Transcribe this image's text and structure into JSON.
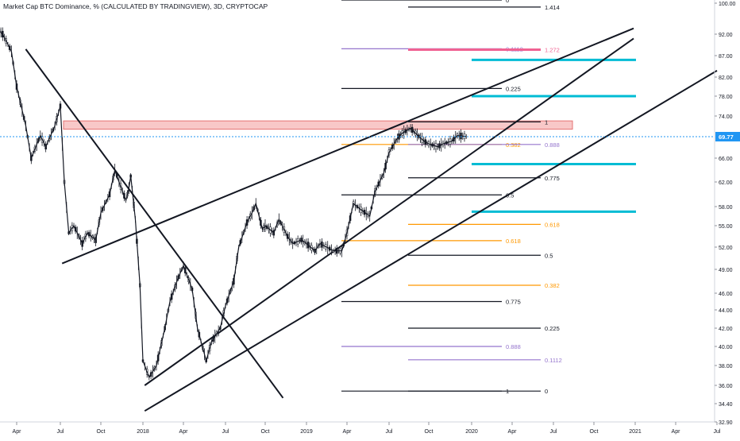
{
  "chart_data": {
    "type": "line",
    "title": "Market Cap BTC Dominance, % (CALCULATED BY TRADINGVIEW), 3D, CRYPTOCAP",
    "price_scale": {
      "ticks": [
        "100.00",
        "92.00",
        "87.00",
        "82.00",
        "78.00",
        "74.00",
        "69.77",
        "66.00",
        "62.00",
        "58.00",
        "55.00",
        "52.00",
        "49.00",
        "46.00",
        "44.00",
        "42.00",
        "40.00",
        "38.00",
        "36.00",
        "34.40",
        "32.90"
      ],
      "current_price": "69.77"
    },
    "time_axis": {
      "labels": [
        "Apr",
        "Jul",
        "Oct",
        "2018",
        "Apr",
        "Jul",
        "Oct",
        "2019",
        "Apr",
        "Jul",
        "Oct",
        "2020",
        "Apr",
        "Jul",
        "Oct",
        "2021",
        "Apr",
        "Jul"
      ]
    },
    "fib_levels": [
      {
        "label": "0",
        "value": 100.8,
        "color": "#131722",
        "group": "left"
      },
      {
        "label": "1.414",
        "value": 99.0,
        "color": "#131722",
        "group": "right"
      },
      {
        "label": "0.1112",
        "value": 88.6,
        "color": "#9575cd",
        "group": "left"
      },
      {
        "label": "1.272",
        "value": 88.4,
        "color": "#f06292",
        "group": "right"
      },
      {
        "label": "0.225",
        "value": 79.6,
        "color": "#131722",
        "group": "left"
      },
      {
        "label": "1",
        "value": 72.8,
        "color": "#131722",
        "group": "right"
      },
      {
        "label": "0.382",
        "value": 68.4,
        "color": "#ff9800",
        "group": "left"
      },
      {
        "label": "0.888",
        "value": 68.4,
        "color": "#9575cd",
        "group": "right"
      },
      {
        "label": "0.775",
        "value": 62.7,
        "color": "#131722",
        "group": "right"
      },
      {
        "label": "0.5",
        "value": 59.9,
        "color": "#131722",
        "group": "left"
      },
      {
        "label": "0.618",
        "value": 55.2,
        "color": "#ff9800",
        "group": "right"
      },
      {
        "label": "0.618",
        "value": 52.9,
        "color": "#ff9800",
        "group": "left"
      },
      {
        "label": "0.5",
        "value": 50.9,
        "color": "#131722",
        "group": "right"
      },
      {
        "label": "0.382",
        "value": 47.0,
        "color": "#ff9800",
        "group": "right"
      },
      {
        "label": "0.775",
        "value": 45.0,
        "color": "#131722",
        "group": "left"
      },
      {
        "label": "0.225",
        "value": 42.0,
        "color": "#131722",
        "group": "right"
      },
      {
        "label": "0.888",
        "value": 40.0,
        "color": "#9575cd",
        "group": "left"
      },
      {
        "label": "0.1112",
        "value": 38.6,
        "color": "#9575cd",
        "group": "right"
      },
      {
        "label": "1",
        "value": 35.5,
        "color": "#131722",
        "group": "left"
      },
      {
        "label": "0",
        "value": 35.5,
        "color": "#131722",
        "group": "right"
      }
    ],
    "target_levels": [
      86.0,
      78.0,
      65.0,
      57.2
    ],
    "resistance_zone": [
      71.3,
      73.0
    ],
    "price_series": [
      {
        "date": "2017-02",
        "value": 95.5
      },
      {
        "date": "2017-03",
        "value": 92.0
      },
      {
        "date": "2017-03-20",
        "value": 88.0
      },
      {
        "date": "2017-04",
        "value": 80.0
      },
      {
        "date": "2017-04-20",
        "value": 72.0
      },
      {
        "date": "2017-05",
        "value": 66.0
      },
      {
        "date": "2017-05-20",
        "value": 70.0
      },
      {
        "date": "2017-06",
        "value": 68.0
      },
      {
        "date": "2017-06-20",
        "value": 72.0
      },
      {
        "date": "2017-07",
        "value": 76.0
      },
      {
        "date": "2017-07-10",
        "value": 62.0
      },
      {
        "date": "2017-07-20",
        "value": 54.0
      },
      {
        "date": "2017-08",
        "value": 55.0
      },
      {
        "date": "2017-08-20",
        "value": 52.5
      },
      {
        "date": "2017-09",
        "value": 54.0
      },
      {
        "date": "2017-09-20",
        "value": 53.0
      },
      {
        "date": "2017-10",
        "value": 57.0
      },
      {
        "date": "2017-10-20",
        "value": 60.0
      },
      {
        "date": "2017-11",
        "value": 64.0
      },
      {
        "date": "2017-11-10",
        "value": 62.0
      },
      {
        "date": "2017-11-25",
        "value": 59.0
      },
      {
        "date": "2017-12",
        "value": 61.0
      },
      {
        "date": "2017-12-05",
        "value": 63.0
      },
      {
        "date": "2017-12-15",
        "value": 56.0
      },
      {
        "date": "2017-12-25",
        "value": 47.0
      },
      {
        "date": "2018-01",
        "value": 38.5
      },
      {
        "date": "2018-01-15",
        "value": 36.8
      },
      {
        "date": "2018-02",
        "value": 38.0
      },
      {
        "date": "2018-02-20",
        "value": 42.0
      },
      {
        "date": "2018-03",
        "value": 45.0
      },
      {
        "date": "2018-03-20",
        "value": 48.0
      },
      {
        "date": "2018-04",
        "value": 49.5
      },
      {
        "date": "2018-04-20",
        "value": 46.5
      },
      {
        "date": "2018-05",
        "value": 42.0
      },
      {
        "date": "2018-05-20",
        "value": 38.5
      },
      {
        "date": "2018-06",
        "value": 40.5
      },
      {
        "date": "2018-06-20",
        "value": 42.0
      },
      {
        "date": "2018-07",
        "value": 44.5
      },
      {
        "date": "2018-07-20",
        "value": 47.5
      },
      {
        "date": "2018-08",
        "value": 52.0
      },
      {
        "date": "2018-08-20",
        "value": 55.5
      },
      {
        "date": "2018-09",
        "value": 57.0
      },
      {
        "date": "2018-09-10",
        "value": 58.5
      },
      {
        "date": "2018-09-25",
        "value": 54.5
      },
      {
        "date": "2018-10",
        "value": 55.0
      },
      {
        "date": "2018-10-20",
        "value": 54.0
      },
      {
        "date": "2018-11",
        "value": 56.0
      },
      {
        "date": "2018-11-20",
        "value": 53.5
      },
      {
        "date": "2018-12",
        "value": 52.5
      },
      {
        "date": "2018-12-20",
        "value": 53.0
      },
      {
        "date": "2019-01",
        "value": 52.5
      },
      {
        "date": "2019-01-20",
        "value": 51.5
      },
      {
        "date": "2019-02",
        "value": 52.5
      },
      {
        "date": "2019-03",
        "value": 51.5
      },
      {
        "date": "2019-03-20",
        "value": 51.5
      },
      {
        "date": "2019-04",
        "value": 54.0
      },
      {
        "date": "2019-04-15",
        "value": 58.5
      },
      {
        "date": "2019-05",
        "value": 57.5
      },
      {
        "date": "2019-05-20",
        "value": 56.5
      },
      {
        "date": "2019-06",
        "value": 60.5
      },
      {
        "date": "2019-06-20",
        "value": 63.5
      },
      {
        "date": "2019-07",
        "value": 67.0
      },
      {
        "date": "2019-07-20",
        "value": 69.5
      },
      {
        "date": "2019-08",
        "value": 70.5
      },
      {
        "date": "2019-08-20",
        "value": 71.5
      },
      {
        "date": "2019-09",
        "value": 70.5
      },
      {
        "date": "2019-09-20",
        "value": 69.0
      },
      {
        "date": "2019-10",
        "value": 68.5
      },
      {
        "date": "2019-10-20",
        "value": 68.0
      },
      {
        "date": "2019-11",
        "value": 68.5
      },
      {
        "date": "2019-11-20",
        "value": 69.0
      },
      {
        "date": "2019-12",
        "value": 70.0
      },
      {
        "date": "2019-12-20",
        "value": 69.8
      }
    ]
  },
  "colors": {
    "price_label_bg": "#2196f3",
    "target_line": "#00bcd4",
    "zone_fill": "#f8c8c8",
    "zone_border": "#e57373"
  }
}
